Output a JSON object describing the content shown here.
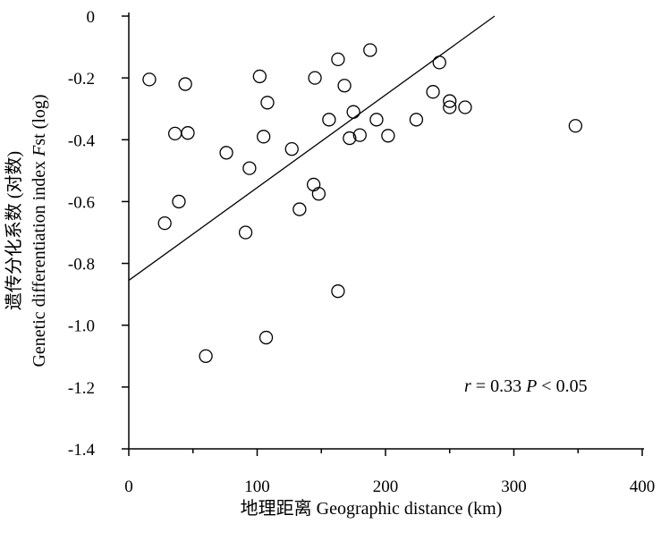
{
  "chart_data": {
    "type": "scatter",
    "title": "",
    "xlabel": "地理距离  Geographic distance (km)",
    "ylabel": {
      "line1": "遗传分化系数 (对数)",
      "line2_pre": "Genetic differentiation index ",
      "line2_ital": "F",
      "line2_post": "st (log)"
    },
    "xlim": [
      0,
      400
    ],
    "ylim": [
      -1.4,
      0
    ],
    "xticks": [
      0,
      100,
      200,
      300,
      400
    ],
    "yticks": [
      0,
      -0.2,
      -0.4,
      -0.6,
      -0.8,
      -1.0,
      -1.2,
      -1.4
    ],
    "ytick_labels": [
      "0",
      "-0.2",
      "-0.4",
      "-0.6",
      "-0.8",
      "-1.0",
      "-1.2",
      "-1.4"
    ],
    "xtick_labels": [
      "0",
      "100",
      "200",
      "300",
      "400"
    ],
    "grid": false,
    "points": [
      {
        "x": 16,
        "y": -0.205
      },
      {
        "x": 28,
        "y": -0.67
      },
      {
        "x": 36,
        "y": -0.38
      },
      {
        "x": 39,
        "y": -0.6
      },
      {
        "x": 44,
        "y": -0.22
      },
      {
        "x": 46,
        "y": -0.378
      },
      {
        "x": 60,
        "y": -1.1
      },
      {
        "x": 76,
        "y": -0.442
      },
      {
        "x": 91,
        "y": -0.7
      },
      {
        "x": 94,
        "y": -0.492
      },
      {
        "x": 102,
        "y": -0.195
      },
      {
        "x": 105,
        "y": -0.39
      },
      {
        "x": 107,
        "y": -1.04
      },
      {
        "x": 108,
        "y": -0.28
      },
      {
        "x": 127,
        "y": -0.43
      },
      {
        "x": 133,
        "y": -0.625
      },
      {
        "x": 144,
        "y": -0.545
      },
      {
        "x": 145,
        "y": -0.2
      },
      {
        "x": 148,
        "y": -0.575
      },
      {
        "x": 156,
        "y": -0.335
      },
      {
        "x": 163,
        "y": -0.14
      },
      {
        "x": 163,
        "y": -0.89
      },
      {
        "x": 168,
        "y": -0.225
      },
      {
        "x": 172,
        "y": -0.395
      },
      {
        "x": 175,
        "y": -0.31
      },
      {
        "x": 180,
        "y": -0.385
      },
      {
        "x": 188,
        "y": -0.11
      },
      {
        "x": 193,
        "y": -0.335
      },
      {
        "x": 202,
        "y": -0.387
      },
      {
        "x": 224,
        "y": -0.335
      },
      {
        "x": 237,
        "y": -0.245
      },
      {
        "x": 242,
        "y": -0.15
      },
      {
        "x": 250,
        "y": -0.275
      },
      {
        "x": 250,
        "y": -0.295
      },
      {
        "x": 262,
        "y": -0.295
      },
      {
        "x": 348,
        "y": -0.355
      }
    ],
    "fit_line": {
      "x": [
        0,
        285
      ],
      "y": [
        -0.855,
        0
      ]
    },
    "annotation": {
      "r_sym": "r",
      "r_text": " = 0.33 ",
      "p_sym": "P",
      "p_text": " < 0.05"
    },
    "colors": {
      "marker_edge": "#000000",
      "line": "#000000",
      "background": "#ffffff"
    }
  }
}
